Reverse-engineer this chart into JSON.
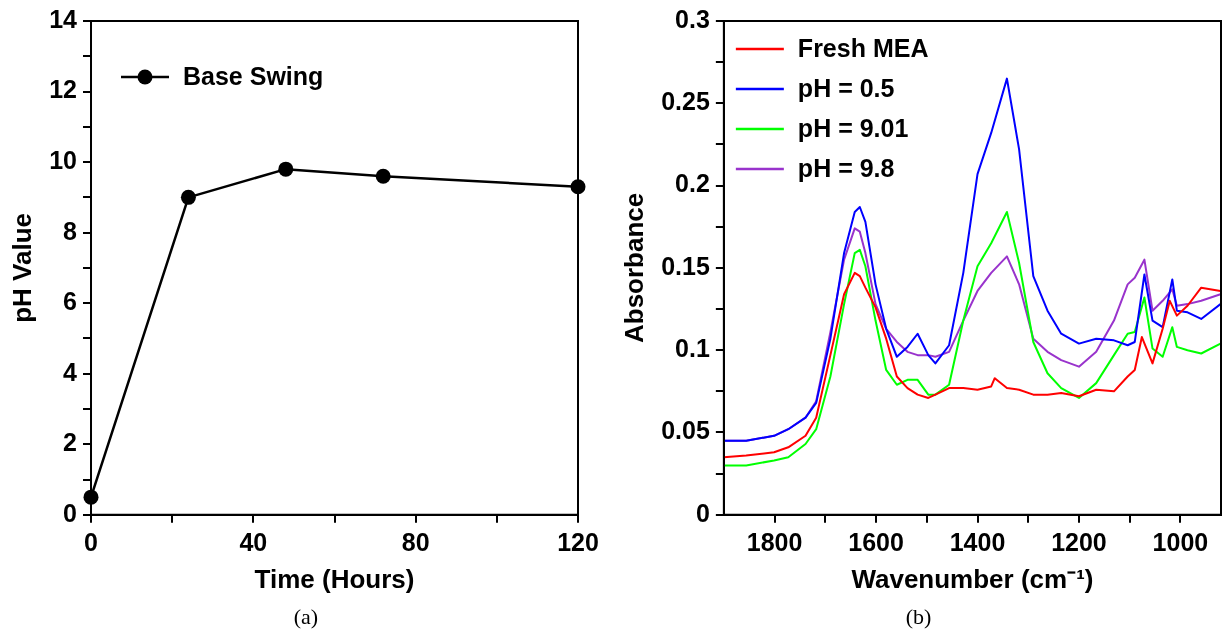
{
  "chart_data": [
    {
      "type": "line",
      "xlabel": "Time (Hours)",
      "ylabel": "pH Value",
      "annotations": [
        "(a)"
      ],
      "marker": "circle",
      "legend": "top left",
      "xlim": [
        0,
        120
      ],
      "xticks": [
        0,
        {
          "value": 20,
          "label": null
        },
        40,
        {
          "value": 60,
          "label": null
        },
        80,
        {
          "value": 100,
          "label": null
        },
        120
      ],
      "ylim": [
        0,
        14
      ],
      "yticks": [
        0,
        {
          "value": 1,
          "label": null
        },
        2,
        {
          "value": 3,
          "label": null
        },
        4,
        {
          "value": 5,
          "label": null
        },
        6,
        {
          "value": 7,
          "label": null
        },
        8,
        {
          "value": 9,
          "label": null
        },
        10,
        {
          "value": 11,
          "label": null
        },
        12,
        {
          "value": 13,
          "label": null
        },
        14
      ],
      "x": [
        0,
        24,
        48,
        72,
        120
      ],
      "series": [
        {
          "name": "Base Swing",
          "color": "#000000",
          "values": [
            0.5,
            9.0,
            9.8,
            9.6,
            9.3
          ]
        }
      ]
    },
    {
      "type": "line",
      "xlabel": "Wavenumber (cm⁻¹)",
      "ylabel": "Absorbance",
      "annotations": [
        "(b)"
      ],
      "legend": "top left",
      "xlim": [
        1900,
        920
      ],
      "xticks": [
        1800,
        {
          "value": 1700,
          "label": null
        },
        1600,
        {
          "value": 1500,
          "label": null
        },
        1400,
        {
          "value": 1300,
          "label": null
        },
        1200,
        {
          "value": 1100,
          "label": null
        },
        1000
      ],
      "ylim": [
        0,
        0.3
      ],
      "yticks": [
        0,
        {
          "value": 0.025,
          "label": null
        },
        0.05,
        {
          "value": 0.075,
          "label": null
        },
        0.1,
        {
          "value": 0.125,
          "label": null
        },
        0.15,
        {
          "value": 0.175,
          "label": null
        },
        0.2,
        {
          "value": 0.225,
          "label": null
        },
        0.25,
        {
          "value": 0.275,
          "label": null
        },
        0.3
      ],
      "series": [
        {
          "name": "Fresh MEA",
          "color": "#ff0000",
          "x": [
            1900,
            1856,
            1801,
            1773,
            1739,
            1718,
            1690,
            1663,
            1642,
            1632,
            1621,
            1601,
            1580,
            1559,
            1538,
            1518,
            1497,
            1483,
            1456,
            1428,
            1400,
            1373,
            1366,
            1342,
            1318,
            1290,
            1262,
            1235,
            1200,
            1166,
            1131,
            1104,
            1090,
            1076,
            1055,
            1035,
            1021,
            1007,
            986,
            959,
            921
          ],
          "values": [
            0.035,
            0.036,
            0.038,
            0.041,
            0.048,
            0.059,
            0.097,
            0.134,
            0.147,
            0.145,
            0.138,
            0.126,
            0.107,
            0.084,
            0.077,
            0.073,
            0.071,
            0.073,
            0.077,
            0.077,
            0.076,
            0.078,
            0.083,
            0.077,
            0.076,
            0.073,
            0.073,
            0.074,
            0.072,
            0.076,
            0.075,
            0.084,
            0.088,
            0.108,
            0.092,
            0.113,
            0.13,
            0.121,
            0.127,
            0.138,
            0.136
          ]
        },
        {
          "name": "pH = 0.5",
          "color": "#0000ff",
          "x": [
            1900,
            1856,
            1801,
            1773,
            1739,
            1718,
            1690,
            1663,
            1642,
            1632,
            1621,
            1601,
            1580,
            1559,
            1538,
            1518,
            1497,
            1483,
            1456,
            1428,
            1400,
            1373,
            1342,
            1318,
            1290,
            1262,
            1235,
            1200,
            1166,
            1131,
            1104,
            1090,
            1071,
            1055,
            1035,
            1016,
            1007,
            986,
            959,
            921
          ],
          "values": [
            0.045,
            0.045,
            0.048,
            0.052,
            0.059,
            0.068,
            0.107,
            0.159,
            0.184,
            0.187,
            0.178,
            0.14,
            0.113,
            0.096,
            0.102,
            0.11,
            0.097,
            0.092,
            0.103,
            0.147,
            0.207,
            0.232,
            0.265,
            0.222,
            0.145,
            0.124,
            0.11,
            0.104,
            0.107,
            0.106,
            0.103,
            0.105,
            0.146,
            0.118,
            0.114,
            0.143,
            0.124,
            0.123,
            0.119,
            0.128
          ]
        },
        {
          "name": "pH = 9.01",
          "color": "#00ff00",
          "x": [
            1900,
            1856,
            1801,
            1773,
            1739,
            1718,
            1690,
            1663,
            1642,
            1632,
            1621,
            1601,
            1580,
            1559,
            1538,
            1518,
            1497,
            1483,
            1456,
            1428,
            1400,
            1373,
            1342,
            1318,
            1290,
            1262,
            1235,
            1200,
            1166,
            1131,
            1104,
            1090,
            1071,
            1055,
            1035,
            1016,
            1007,
            986,
            959,
            921
          ],
          "values": [
            0.03,
            0.03,
            0.033,
            0.035,
            0.043,
            0.052,
            0.084,
            0.128,
            0.159,
            0.161,
            0.151,
            0.118,
            0.088,
            0.079,
            0.082,
            0.082,
            0.073,
            0.073,
            0.079,
            0.118,
            0.151,
            0.165,
            0.184,
            0.153,
            0.105,
            0.086,
            0.077,
            0.071,
            0.08,
            0.097,
            0.11,
            0.111,
            0.132,
            0.101,
            0.096,
            0.114,
            0.102,
            0.1,
            0.098,
            0.104
          ]
        },
        {
          "name": "pH = 9.8",
          "color": "#9933cc",
          "x": [
            1900,
            1856,
            1801,
            1773,
            1739,
            1718,
            1690,
            1663,
            1642,
            1632,
            1621,
            1601,
            1580,
            1559,
            1538,
            1518,
            1497,
            1483,
            1456,
            1428,
            1400,
            1373,
            1342,
            1318,
            1290,
            1262,
            1235,
            1200,
            1166,
            1131,
            1104,
            1090,
            1071,
            1055,
            1035,
            1016,
            1007,
            986,
            959,
            921
          ],
          "values": [
            0.045,
            0.045,
            0.048,
            0.052,
            0.059,
            0.069,
            0.111,
            0.155,
            0.174,
            0.172,
            0.159,
            0.128,
            0.113,
            0.105,
            0.099,
            0.097,
            0.097,
            0.096,
            0.099,
            0.118,
            0.136,
            0.147,
            0.157,
            0.14,
            0.107,
            0.099,
            0.094,
            0.09,
            0.099,
            0.118,
            0.14,
            0.144,
            0.155,
            0.124,
            0.13,
            0.137,
            0.127,
            0.128,
            0.13,
            0.134
          ]
        }
      ]
    }
  ]
}
